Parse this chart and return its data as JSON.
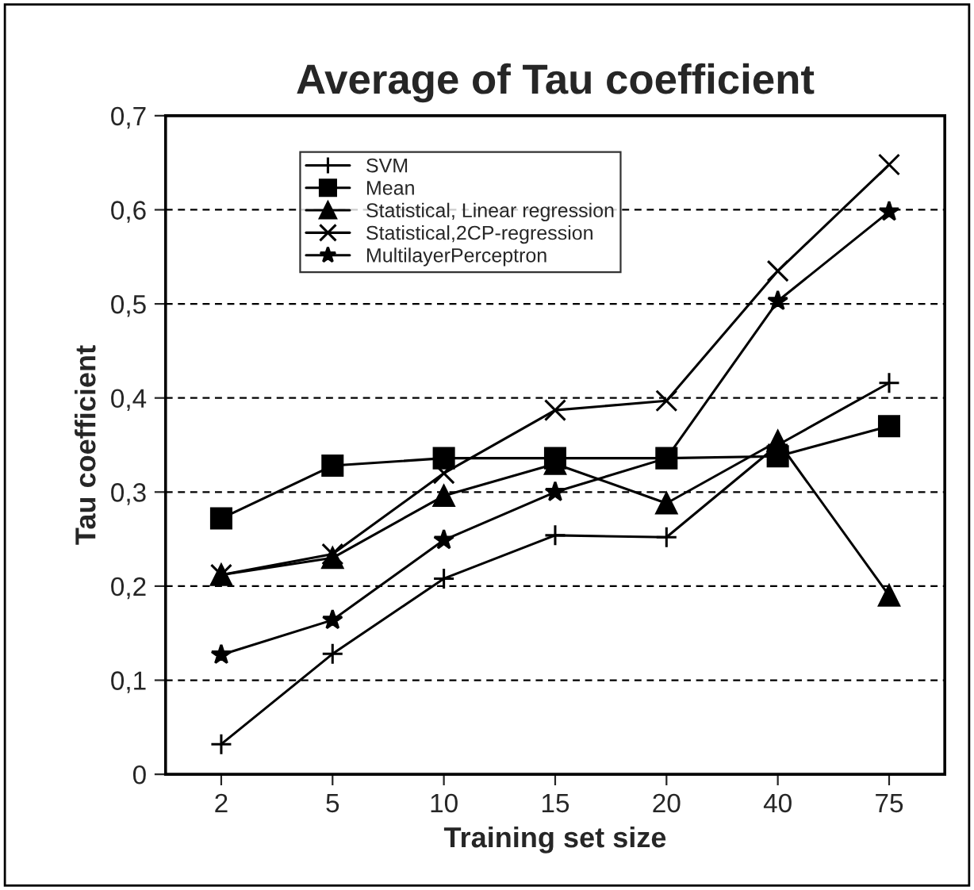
{
  "chart_data": {
    "type": "line",
    "title": "Average of Tau coefficient",
    "xlabel": "Training set size",
    "ylabel": "Tau coefficient",
    "categories": [
      "2",
      "5",
      "10",
      "15",
      "20",
      "40",
      "75"
    ],
    "series": [
      {
        "name": "SVM",
        "color": "#000000",
        "marker": "plus",
        "values": [
          0.032,
          0.128,
          0.208,
          0.254,
          0.252,
          0.35,
          0.416
        ]
      },
      {
        "name": "Mean",
        "color": "#000000",
        "marker": "square",
        "values": [
          0.272,
          0.328,
          0.336,
          0.336,
          0.336,
          0.338,
          0.37
        ]
      },
      {
        "name": "Statistical, Linear regression",
        "color": "#000000",
        "marker": "triangle",
        "values": [
          0.212,
          0.23,
          0.296,
          0.33,
          0.288,
          0.354,
          0.19
        ]
      },
      {
        "name": "Statistical,2CP-regression",
        "color": "#000000",
        "marker": "cross",
        "values": [
          0.212,
          0.234,
          0.32,
          0.387,
          0.397,
          0.535,
          0.648
        ]
      },
      {
        "name": "MultilayerPerceptron",
        "color": "#000000",
        "marker": "star",
        "values": [
          0.127,
          0.164,
          0.249,
          0.3,
          0.336,
          0.503,
          0.598
        ]
      }
    ],
    "ylim": [
      0,
      0.7
    ],
    "yticks": [
      0,
      {
        "value": 0.1,
        "label": "0,1"
      },
      {
        "value": 0.2,
        "label": "0,2"
      },
      {
        "value": 0.3,
        "label": "0,3"
      },
      {
        "value": 0.4,
        "label": "0,4"
      },
      {
        "value": 0.5,
        "label": "0,5"
      },
      {
        "value": 0.6,
        "label": "0,6"
      },
      {
        "value": 0.7,
        "label": "0,7"
      }
    ],
    "grid": "y",
    "legend": "top left",
    "line_style": "solid"
  }
}
